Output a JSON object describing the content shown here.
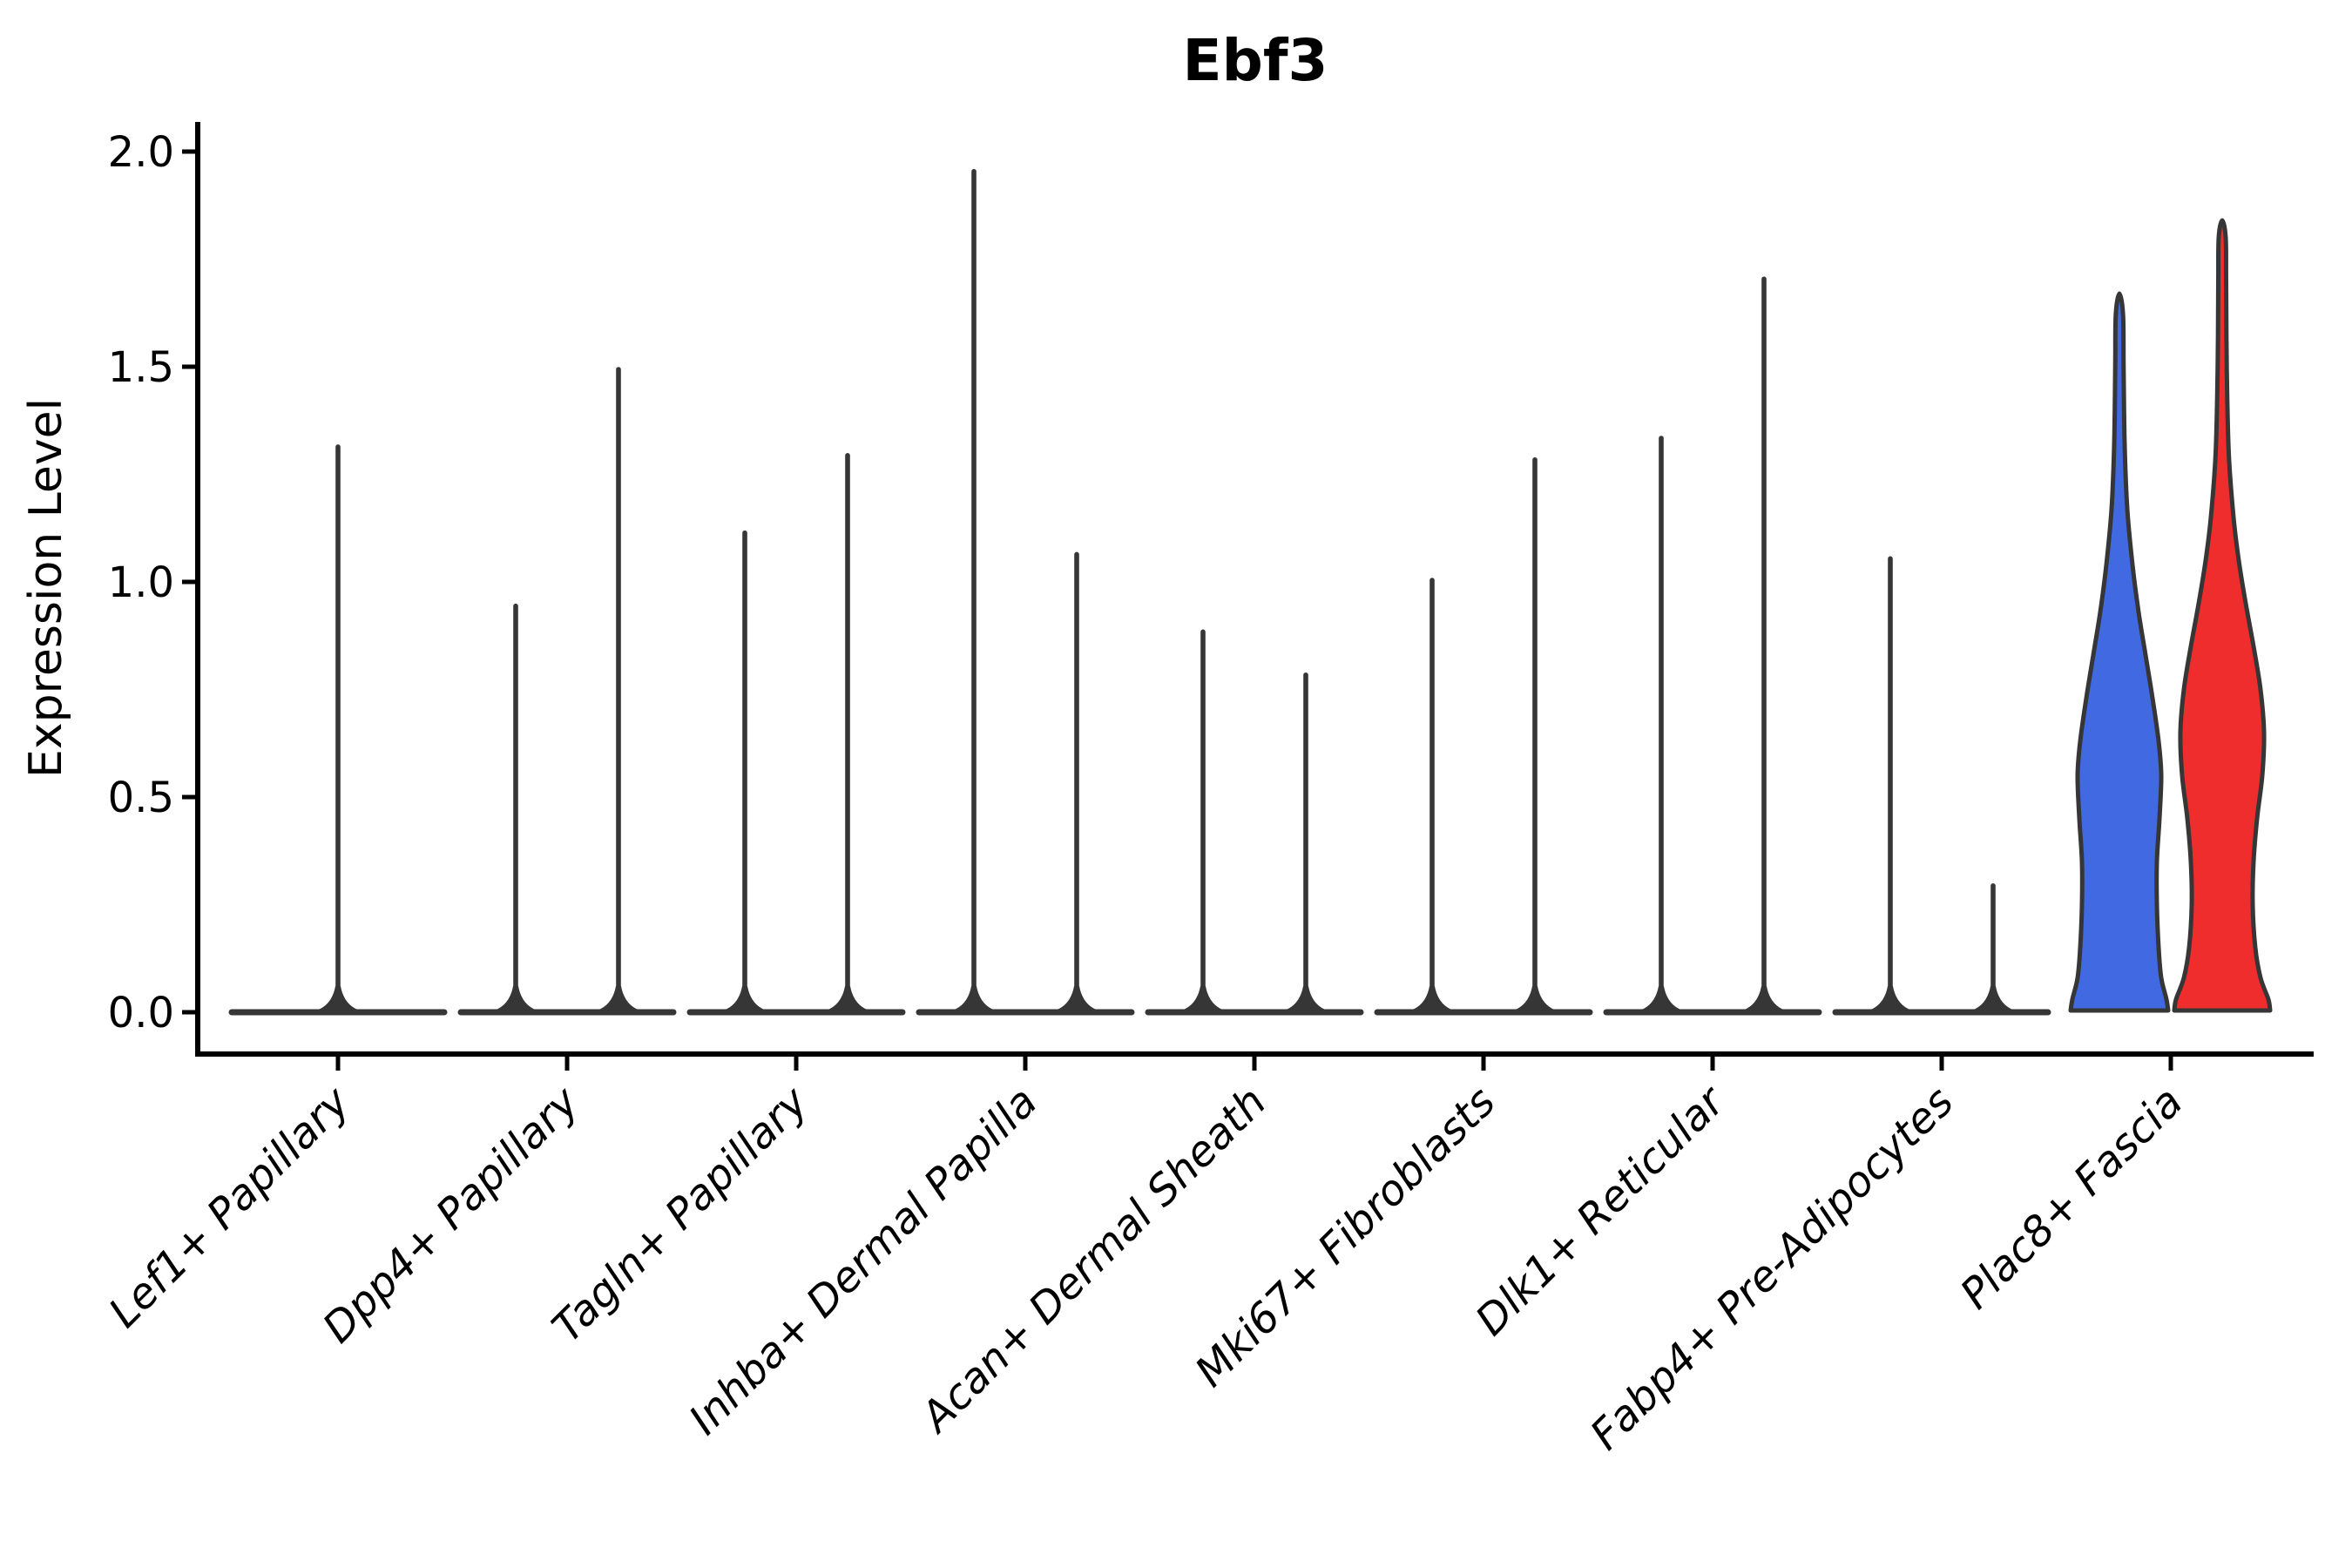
{
  "title": "Ebf3",
  "y_axis": {
    "label": "Expression Level",
    "ticks": [
      "0.0",
      "0.5",
      "1.0",
      "1.5",
      "2.0"
    ],
    "tick_values": [
      0.0,
      0.5,
      1.0,
      1.5,
      2.0
    ]
  },
  "colors": {
    "split_group_1_fill": "#4169E1",
    "split_group_2_fill": "#EF2D2D",
    "violin_outline": "#363636",
    "axis": "#000000"
  },
  "chart_data": {
    "type": "violin",
    "title": "Ebf3",
    "xlabel": "",
    "ylabel": "Expression Level",
    "ylim": [
      0,
      2.05
    ],
    "yticks": [
      0.0,
      0.5,
      1.0,
      1.5,
      2.0
    ],
    "grid": false,
    "legend": "none",
    "categories": [
      "Lef1+ Papillary",
      "Dpp4+ Papillary",
      "Tagln+ Papillary",
      "Inhba+ Dermal Papilla",
      "Acan+ Dermal Sheath",
      "Mki67+ Fibroblasts",
      "Dlk1+ Reticular",
      "Fabp4+ Pre-Adipocytes",
      "Plac8+ Fascia"
    ],
    "series": [
      {
        "name": "split-group-1 (left violin, blue fill)",
        "color": "#4169E1",
        "max_expression": [
          1.32,
          0.95,
          1.12,
          1.96,
          0.89,
          1.01,
          1.34,
          1.06,
          1.67
        ]
      },
      {
        "name": "split-group-2 (right violin, red fill)",
        "color": "#EF2D2D",
        "max_expression": [
          null,
          1.5,
          1.3,
          1.07,
          0.79,
          1.29,
          1.71,
          0.3,
          1.84
        ]
      }
    ],
    "single_centered_violin": [
      true,
      false,
      false,
      false,
      false,
      false,
      false,
      false,
      false
    ],
    "note": "All categories except Plac8+ Fascia have near-zero-width density bodies: a flat base line at 0 with a thin dark spike up to the max expression value. Plac8+ Fascia shows two full violins: blue (left, max 1.67) and red (right, max 1.84)."
  },
  "violin_profiles": {
    "blue": [
      [
        0.004,
        56
      ],
      [
        0.03,
        54
      ],
      [
        0.08,
        48
      ],
      [
        0.15,
        45
      ],
      [
        0.25,
        43
      ],
      [
        0.35,
        43
      ],
      [
        0.45,
        46
      ],
      [
        0.55,
        48
      ],
      [
        0.63,
        45
      ],
      [
        0.73,
        38
      ],
      [
        0.83,
        30
      ],
      [
        0.93,
        22
      ],
      [
        1.04,
        15
      ],
      [
        1.17,
        9
      ],
      [
        1.32,
        6
      ],
      [
        1.5,
        4.8
      ],
      [
        1.62,
        4.2
      ],
      [
        1.67,
        0
      ]
    ],
    "red": [
      [
        0.004,
        55
      ],
      [
        0.03,
        53
      ],
      [
        0.08,
        44
      ],
      [
        0.15,
        38
      ],
      [
        0.25,
        35
      ],
      [
        0.35,
        36
      ],
      [
        0.45,
        40
      ],
      [
        0.55,
        46
      ],
      [
        0.65,
        48
      ],
      [
        0.75,
        44
      ],
      [
        0.85,
        36
      ],
      [
        0.95,
        27
      ],
      [
        1.05,
        19
      ],
      [
        1.15,
        13
      ],
      [
        1.3,
        7.5
      ],
      [
        1.5,
        5.2
      ],
      [
        1.7,
        4.5
      ],
      [
        1.8,
        4
      ],
      [
        1.84,
        0
      ]
    ]
  }
}
